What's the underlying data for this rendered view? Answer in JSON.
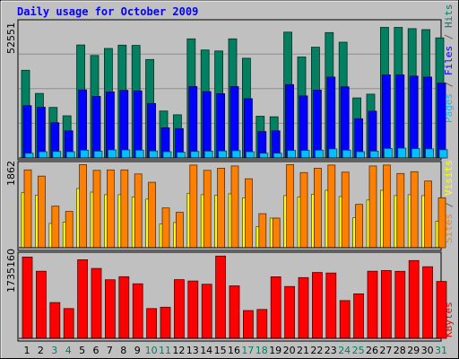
{
  "chart_data": {
    "type": "bar",
    "title": "Daily usage for October 2009",
    "x": [
      "1",
      "2",
      "3",
      "4",
      "5",
      "6",
      "7",
      "8",
      "9",
      "10",
      "11",
      "12",
      "13",
      "14",
      "15",
      "16",
      "17",
      "18",
      "19",
      "20",
      "21",
      "22",
      "23",
      "24",
      "25",
      "26",
      "27",
      "28",
      "29",
      "30",
      "31"
    ],
    "weekend_days": [
      "3",
      "4",
      "10",
      "11",
      "17",
      "18",
      "24",
      "25",
      "31"
    ],
    "panels": [
      {
        "name": "hits-files-pages",
        "ymax_label": "52551",
        "ymax": 52551,
        "side_labels": [
          {
            "text": "Pages",
            "color": "#00c0ff"
          },
          {
            "text": " / ",
            "color": "#606060"
          },
          {
            "text": "Files",
            "color": "#0000ff"
          },
          {
            "text": " / ",
            "color": "#606060"
          },
          {
            "text": "Hits",
            "color": "#008060"
          }
        ],
        "series": [
          {
            "name": "Hits",
            "color": "#008060",
            "values": [
              34900,
              25700,
              20100,
              16800,
              45000,
              40800,
              43600,
              44900,
              44800,
              39200,
              18700,
              17200,
              47400,
              43000,
              42600,
              47400,
              39700,
              16600,
              16400,
              50100,
              40200,
              44100,
              49900,
              46100,
              23900,
              25400,
              52000,
              52000,
              51500,
              51100,
              47800
            ]
          },
          {
            "name": "Files",
            "color": "#0000ff",
            "values": [
              20800,
              20200,
              14000,
              10800,
              27100,
              24500,
              26300,
              26900,
              26700,
              21700,
              12000,
              11700,
              28400,
              26400,
              25600,
              28400,
              23600,
              10500,
              10800,
              29200,
              24700,
              27000,
              32200,
              28300,
              15600,
              18600,
              33100,
              33100,
              32600,
              32200,
              29800
            ]
          },
          {
            "name": "Pages",
            "color": "#00c0ff",
            "values": [
              1900,
              2500,
              2600,
              2500,
              3100,
              2700,
              3200,
              3200,
              3100,
              2800,
              2500,
              2300,
              2600,
              2700,
              2800,
              2900,
              2500,
              1900,
              1900,
              3000,
              3000,
              3100,
              3600,
              3100,
              2500,
              2700,
              3800,
              3900,
              3700,
              3600,
              3300
            ]
          }
        ]
      },
      {
        "name": "visits-sites",
        "ymax_label": "1862",
        "ymax": 1862,
        "side_labels": [
          {
            "text": "Sites",
            "color": "#ff8000"
          },
          {
            "text": " / ",
            "color": "#606060"
          },
          {
            "text": "Visits",
            "color": "#ffff00"
          }
        ],
        "series": [
          {
            "name": "Visits",
            "color": "#ffff00",
            "values": [
              1250,
              1190,
              550,
              580,
              1340,
              1260,
              1200,
              1200,
              1150,
              1100,
              540,
              570,
              1230,
              1200,
              1190,
              1220,
              1130,
              480,
              670,
              1180,
              1150,
              1210,
              1300,
              1160,
              680,
              1080,
              1300,
              1180,
              1200,
              1180,
              600
            ]
          },
          {
            "name": "Sites",
            "color": "#ff8000",
            "values": [
              1760,
              1620,
              940,
              820,
              1880,
              1750,
              1760,
              1760,
              1670,
              1480,
              900,
              800,
              1870,
              1750,
              1800,
              1850,
              1560,
              770,
              670,
              1880,
              1700,
              1800,
              1870,
              1710,
              980,
              1850,
              1870,
              1680,
              1720,
              1510,
              1130
            ]
          }
        ]
      },
      {
        "name": "kbytes",
        "ymax_label": "1735160",
        "ymax": 1735160,
        "side_labels": [
          {
            "text": "KBytes",
            "color": "#ff0000"
          }
        ],
        "series": [
          {
            "name": "KBytes",
            "color": "#ff0000",
            "values": [
              1714000,
              1416000,
              756000,
              629000,
              1657000,
              1474000,
              1236000,
              1301000,
              1150000,
              629000,
              657000,
              1238000,
              1209000,
              1142000,
              1735160,
              1108000,
              587000,
              610000,
              1298000,
              1094000,
              1281000,
              1389000,
              1378000,
              797000,
              938000,
              1416000,
              1431000,
              1414000,
              1640000,
              1510000,
              1200000
            ]
          }
        ]
      }
    ]
  }
}
